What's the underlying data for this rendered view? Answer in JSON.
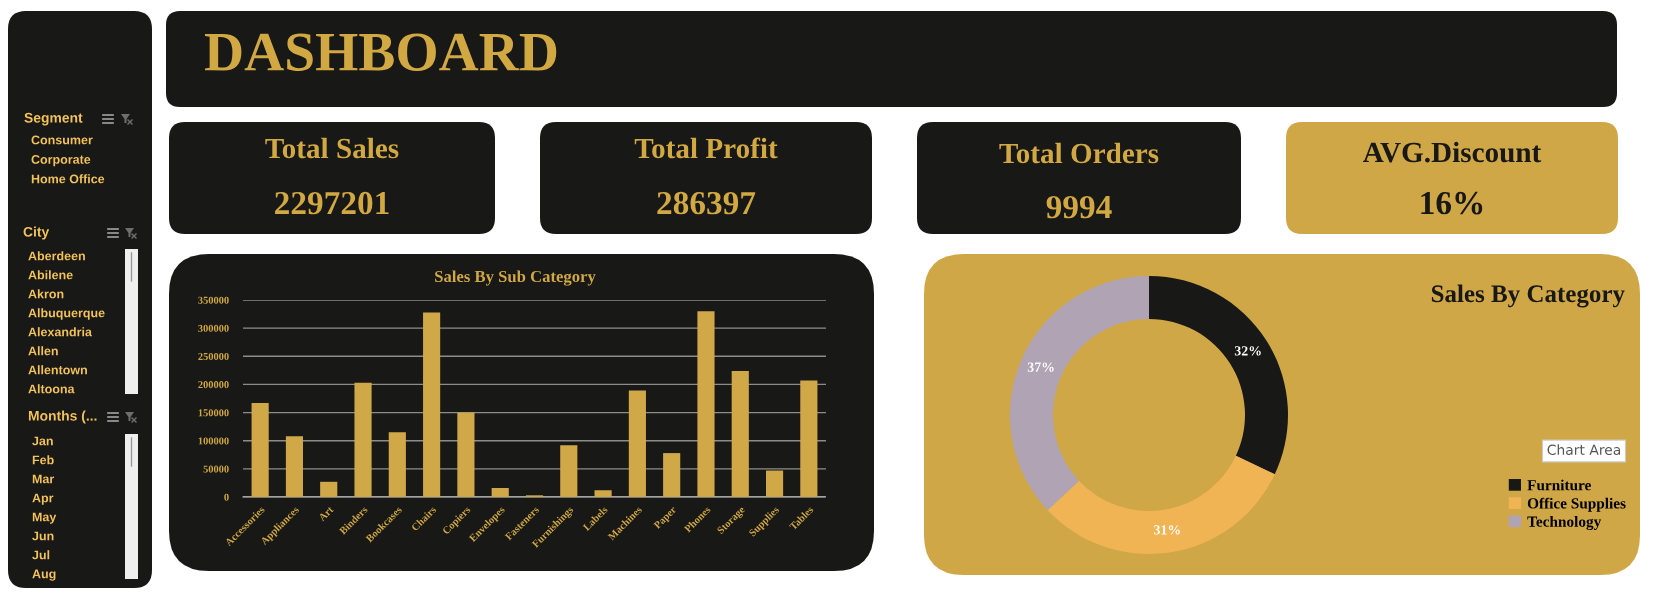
{
  "chart_data": [
    {
      "type": "other",
      "title": "Segment",
      "annotations": [
        "Consumer",
        "Corporate",
        "Home Office"
      ]
    },
    {
      "type": "other",
      "title": "City",
      "annotations": [
        "Aberdeen",
        "Abilene",
        "Akron",
        "Albuquerque",
        "Alexandria",
        "Allen",
        "Allentown",
        "Altoona"
      ]
    },
    {
      "type": "other",
      "title": "Months (...",
      "annotations": [
        "Jan",
        "Feb",
        "Mar",
        "Apr",
        "May",
        "Jun",
        "Jul",
        "Aug"
      ]
    },
    {
      "type": "other",
      "title": "DASHBOARD"
    },
    {
      "type": "other",
      "title": "Total Sales",
      "annotations": [
        "2297201"
      ]
    },
    {
      "type": "other",
      "title": "Total Profit",
      "annotations": [
        "286397"
      ]
    },
    {
      "type": "other",
      "title": "Total Orders",
      "annotations": [
        "9994"
      ]
    },
    {
      "type": "other",
      "title": "AVG.Discount",
      "annotations": [
        "16%"
      ]
    },
    {
      "type": "bar",
      "title": "Sales By Sub Category",
      "categories": [
        "Accessories",
        "Appliances",
        "Art",
        "Binders",
        "Bookcases",
        "Chairs",
        "Copiers",
        "Envelopes",
        "Fasteners",
        "Furnishings",
        "Labels",
        "Machines",
        "Paper",
        "Phones",
        "Storage",
        "Supplies",
        "Tables"
      ],
      "values": [
        167000,
        108000,
        27000,
        203000,
        115000,
        328000,
        150000,
        16000,
        3000,
        92000,
        12000,
        189000,
        78000,
        330000,
        224000,
        47000,
        207000
      ],
      "color": "#d0a848",
      "ylim": [
        0,
        350000
      ],
      "yticks": [
        0,
        50000,
        100000,
        150000,
        200000,
        250000,
        300000,
        350000
      ],
      "grid": "y"
    },
    {
      "type": "donut",
      "title": "Sales By Category",
      "categories": [
        "Furniture",
        "Office Supplies",
        "Technology"
      ],
      "values": [
        32,
        31,
        37
      ],
      "colors": [
        "#181816",
        "#f0b455",
        "#b0a3b3"
      ],
      "value_labels": [
        "32%",
        "31%",
        "37%"
      ],
      "legend": "bottom right",
      "annotations": [
        "Chart Area"
      ]
    }
  ]
}
